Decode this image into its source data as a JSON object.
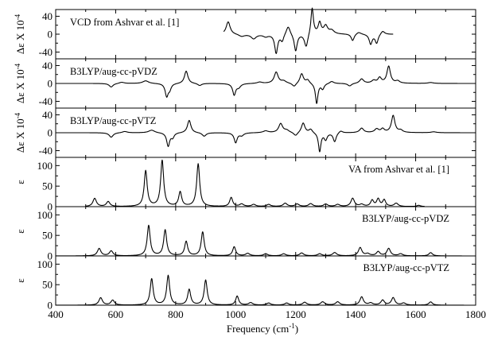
{
  "chart_data": {
    "type": "line",
    "xlabel": "Frequency (cm",
    "xlabel_sup": "-1",
    "xlabel_end": ")",
    "xlim": [
      400,
      1800
    ],
    "xticks": [
      400,
      600,
      800,
      1000,
      1200,
      1400,
      1600,
      1800
    ],
    "panels": [
      {
        "title": "VCD from Ashvar et al. [1]",
        "ylabel": "Δε X 10",
        "ylabel_sup": "-4",
        "ylim": [
          -55,
          55
        ],
        "yticks": [
          -40,
          0,
          40
        ],
        "title_pos": "top-left",
        "baseline": 0,
        "xrange": [
          960,
          1525
        ],
        "peaks": [
          [
            975,
            28,
            8
          ],
          [
            1020,
            -5,
            12
          ],
          [
            1060,
            -10,
            10
          ],
          [
            1100,
            -5,
            10
          ],
          [
            1135,
            -42,
            6
          ],
          [
            1155,
            -15,
            6
          ],
          [
            1175,
            20,
            8
          ],
          [
            1200,
            -38,
            6
          ],
          [
            1235,
            -30,
            7
          ],
          [
            1255,
            60,
            5
          ],
          [
            1280,
            25,
            6
          ],
          [
            1300,
            18,
            8
          ],
          [
            1320,
            8,
            10
          ],
          [
            1390,
            -15,
            6
          ],
          [
            1410,
            5,
            10
          ],
          [
            1450,
            -22,
            6
          ],
          [
            1470,
            -20,
            6
          ],
          [
            1490,
            8,
            8
          ]
        ]
      },
      {
        "title": "B3LYP/aug-cc-pVDZ",
        "ylabel": "Δε X 10",
        "ylabel_sup": "-4",
        "ylim": [
          -55,
          55
        ],
        "yticks": [
          -40,
          0,
          40
        ],
        "title_pos": "top-left",
        "baseline": 0,
        "xrange": [
          400,
          1800
        ],
        "peaks": [
          [
            585,
            -8,
            8
          ],
          [
            620,
            3,
            10
          ],
          [
            700,
            6,
            12
          ],
          [
            770,
            -28,
            6
          ],
          [
            780,
            -12,
            6
          ],
          [
            835,
            28,
            7
          ],
          [
            880,
            -5,
            8
          ],
          [
            995,
            -25,
            6
          ],
          [
            1010,
            -8,
            8
          ],
          [
            1080,
            3,
            10
          ],
          [
            1135,
            25,
            8
          ],
          [
            1160,
            5,
            10
          ],
          [
            1195,
            -8,
            8
          ],
          [
            1220,
            22,
            7
          ],
          [
            1240,
            8,
            7
          ],
          [
            1270,
            -45,
            5
          ],
          [
            1290,
            -12,
            6
          ],
          [
            1320,
            5,
            8
          ],
          [
            1380,
            -6,
            8
          ],
          [
            1420,
            10,
            8
          ],
          [
            1460,
            6,
            8
          ],
          [
            1480,
            12,
            7
          ],
          [
            1510,
            38,
            7
          ],
          [
            1540,
            5,
            8
          ],
          [
            1650,
            2,
            10
          ]
        ]
      },
      {
        "title": "B3LYP/aug-cc-pVTZ",
        "ylabel": "Δε X 10",
        "ylabel_sup": "-4",
        "ylim": [
          -55,
          55
        ],
        "yticks": [
          -40,
          0,
          40
        ],
        "title_pos": "top-left",
        "baseline": 0,
        "xrange": [
          400,
          1800
        ],
        "peaks": [
          [
            585,
            -10,
            8
          ],
          [
            630,
            3,
            10
          ],
          [
            720,
            6,
            12
          ],
          [
            775,
            -30,
            6
          ],
          [
            790,
            -10,
            6
          ],
          [
            845,
            28,
            7
          ],
          [
            895,
            -8,
            8
          ],
          [
            1000,
            -22,
            6
          ],
          [
            1020,
            -6,
            8
          ],
          [
            1100,
            4,
            10
          ],
          [
            1150,
            20,
            8
          ],
          [
            1170,
            5,
            10
          ],
          [
            1200,
            -8,
            8
          ],
          [
            1225,
            22,
            7
          ],
          [
            1250,
            8,
            7
          ],
          [
            1280,
            -42,
            5
          ],
          [
            1300,
            -15,
            6
          ],
          [
            1330,
            -20,
            6
          ],
          [
            1350,
            5,
            8
          ],
          [
            1420,
            10,
            8
          ],
          [
            1470,
            8,
            8
          ],
          [
            1490,
            8,
            7
          ],
          [
            1525,
            38,
            7
          ],
          [
            1550,
            5,
            8
          ],
          [
            1660,
            2,
            10
          ]
        ]
      },
      {
        "title": "VA from Ashvar et al. [1]",
        "ylabel": "ε",
        "ylim": [
          0,
          120
        ],
        "yticks": [
          0,
          50,
          100
        ],
        "title_pos": "top-right",
        "baseline": 0,
        "xrange": [
          500,
          1630
        ],
        "peaks": [
          [
            530,
            20,
            7
          ],
          [
            575,
            12,
            7
          ],
          [
            700,
            87,
            6
          ],
          [
            755,
            112,
            6
          ],
          [
            815,
            35,
            6
          ],
          [
            875,
            104,
            6
          ],
          [
            985,
            22,
            6
          ],
          [
            1020,
            6,
            8
          ],
          [
            1060,
            5,
            8
          ],
          [
            1110,
            5,
            8
          ],
          [
            1165,
            8,
            8
          ],
          [
            1205,
            6,
            8
          ],
          [
            1250,
            7,
            8
          ],
          [
            1300,
            6,
            8
          ],
          [
            1340,
            5,
            8
          ],
          [
            1390,
            20,
            7
          ],
          [
            1420,
            5,
            8
          ],
          [
            1455,
            15,
            6
          ],
          [
            1475,
            18,
            6
          ],
          [
            1495,
            16,
            6
          ],
          [
            1535,
            8,
            8
          ],
          [
            1610,
            3,
            8
          ]
        ]
      },
      {
        "title": "B3LYP/aug-cc-pVDZ",
        "ylabel": "ε",
        "ylim": [
          0,
          120
        ],
        "yticks": [
          0,
          50,
          100
        ],
        "title_pos": "top-right",
        "baseline": 0,
        "xrange": [
          400,
          1800
        ],
        "peaks": [
          [
            545,
            18,
            7
          ],
          [
            585,
            12,
            7
          ],
          [
            710,
            74,
            6
          ],
          [
            765,
            63,
            6
          ],
          [
            835,
            35,
            6
          ],
          [
            890,
            58,
            6
          ],
          [
            995,
            22,
            6
          ],
          [
            1040,
            6,
            8
          ],
          [
            1100,
            5,
            8
          ],
          [
            1160,
            5,
            8
          ],
          [
            1220,
            7,
            8
          ],
          [
            1280,
            5,
            8
          ],
          [
            1330,
            8,
            8
          ],
          [
            1415,
            20,
            7
          ],
          [
            1440,
            5,
            8
          ],
          [
            1475,
            10,
            7
          ],
          [
            1510,
            18,
            7
          ],
          [
            1550,
            5,
            8
          ],
          [
            1650,
            8,
            7
          ]
        ]
      },
      {
        "title": "B3LYP/aug-cc-pVTZ",
        "ylabel": "ε",
        "ylim": [
          0,
          120
        ],
        "yticks": [
          0,
          50,
          100
        ],
        "title_pos": "top-right",
        "baseline": 0,
        "xrange": [
          400,
          1800
        ],
        "peaks": [
          [
            550,
            18,
            7
          ],
          [
            590,
            12,
            7
          ],
          [
            720,
            64,
            6
          ],
          [
            775,
            72,
            6
          ],
          [
            845,
            38,
            6
          ],
          [
            900,
            61,
            6
          ],
          [
            1005,
            22,
            6
          ],
          [
            1050,
            6,
            8
          ],
          [
            1110,
            5,
            8
          ],
          [
            1170,
            5,
            8
          ],
          [
            1230,
            7,
            8
          ],
          [
            1290,
            8,
            8
          ],
          [
            1340,
            8,
            8
          ],
          [
            1420,
            20,
            7
          ],
          [
            1450,
            5,
            8
          ],
          [
            1490,
            12,
            7
          ],
          [
            1525,
            18,
            7
          ],
          [
            1560,
            5,
            8
          ],
          [
            1650,
            8,
            7
          ]
        ]
      }
    ]
  }
}
